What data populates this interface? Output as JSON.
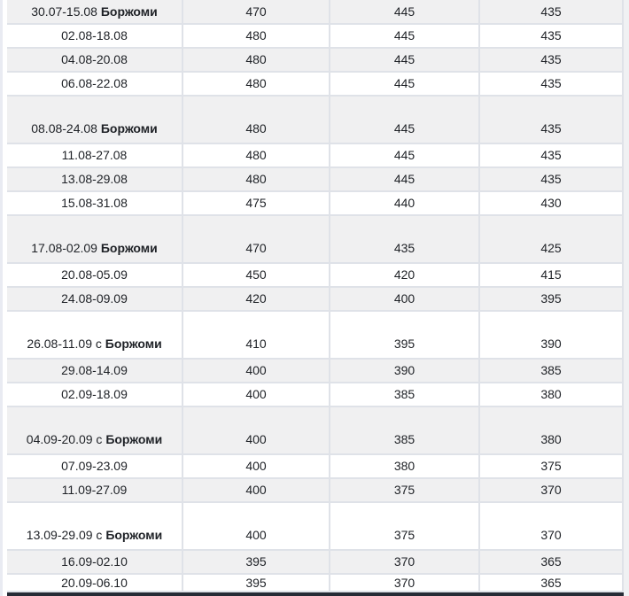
{
  "table": {
    "rows": [
      {
        "date": "30.07-15.08",
        "bold": "Боржоми",
        "prices": [
          "470",
          "445",
          "435"
        ],
        "variant": "shaded",
        "size": "first"
      },
      {
        "date": "02.08-18.08",
        "bold": "",
        "prices": [
          "480",
          "445",
          "435"
        ],
        "variant": "plain",
        "size": "normal"
      },
      {
        "date": "04.08-20.08",
        "bold": "",
        "prices": [
          "480",
          "445",
          "435"
        ],
        "variant": "shaded",
        "size": "normal"
      },
      {
        "date": "06.08-22.08",
        "bold": "",
        "prices": [
          "480",
          "445",
          "435"
        ],
        "variant": "plain",
        "size": "normal"
      },
      {
        "date": "08.08-24.08",
        "bold": "Боржоми",
        "prices": [
          "480",
          "445",
          "435"
        ],
        "variant": "shaded",
        "size": "tall"
      },
      {
        "date": "11.08-27.08",
        "bold": "",
        "prices": [
          "480",
          "445",
          "435"
        ],
        "variant": "plain",
        "size": "normal"
      },
      {
        "date": "13.08-29.08",
        "bold": "",
        "prices": [
          "480",
          "445",
          "435"
        ],
        "variant": "shaded",
        "size": "normal"
      },
      {
        "date": "15.08-31.08",
        "bold": "",
        "prices": [
          "475",
          "440",
          "430"
        ],
        "variant": "plain",
        "size": "normal"
      },
      {
        "date": "17.08-02.09",
        "bold": "Боржоми",
        "prices": [
          "470",
          "435",
          "425"
        ],
        "variant": "shaded",
        "size": "tall"
      },
      {
        "date": "20.08-05.09",
        "bold": "",
        "prices": [
          "450",
          "420",
          "415"
        ],
        "variant": "plain",
        "size": "normal"
      },
      {
        "date": "24.08-09.09",
        "bold": "",
        "prices": [
          "420",
          "400",
          "395"
        ],
        "variant": "shaded",
        "size": "normal"
      },
      {
        "date": "26.08-11.09 с",
        "bold": "Боржоми",
        "prices": [
          "410",
          "395",
          "390"
        ],
        "variant": "plain",
        "size": "tall"
      },
      {
        "date": "29.08-14.09",
        "bold": "",
        "prices": [
          "400",
          "390",
          "385"
        ],
        "variant": "shaded",
        "size": "normal"
      },
      {
        "date": "02.09-18.09",
        "bold": "",
        "prices": [
          "400",
          "385",
          "380"
        ],
        "variant": "plain",
        "size": "normal"
      },
      {
        "date": "04.09-20.09 с",
        "bold": "Боржоми",
        "prices": [
          "400",
          "385",
          "380"
        ],
        "variant": "shaded",
        "size": "tall"
      },
      {
        "date": "07.09-23.09",
        "bold": "",
        "prices": [
          "400",
          "380",
          "375"
        ],
        "variant": "plain",
        "size": "normal"
      },
      {
        "date": "11.09-27.09",
        "bold": "",
        "prices": [
          "400",
          "375",
          "370"
        ],
        "variant": "shaded",
        "size": "normal"
      },
      {
        "date": "13.09-29.09 с",
        "bold": "Боржоми",
        "prices": [
          "400",
          "375",
          "370"
        ],
        "variant": "plain",
        "size": "tall"
      },
      {
        "date": "16.09-02.10",
        "bold": "",
        "prices": [
          "395",
          "370",
          "365"
        ],
        "variant": "shaded",
        "size": "normal"
      },
      {
        "date": "20.09-06.10",
        "bold": "",
        "prices": [
          "395",
          "370",
          "365"
        ],
        "variant": "plain",
        "size": "last"
      }
    ]
  },
  "colors": {
    "row_shaded_bg": "#f0f0f1",
    "row_plain_bg": "#ffffff",
    "cell_border": "#dfe2e8",
    "text": "#1e2126",
    "page_left_edge": "#e9ebf2",
    "right_track": "#f0f1f3",
    "next_section_dark": "#262b35"
  }
}
